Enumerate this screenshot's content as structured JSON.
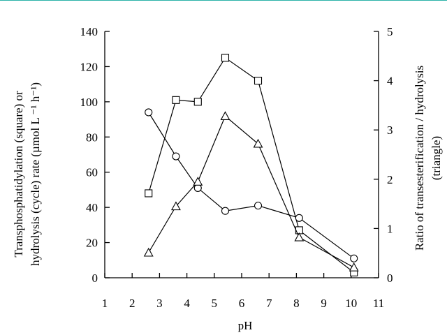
{
  "chart_data": {
    "type": "line",
    "xlabel": "pH",
    "ylabel_lines": [
      "Transphosphatidylation (square) or",
      "hydrolysis (cycle) rate (µmol L ⁻¹ h⁻¹)"
    ],
    "y2label_lines": [
      "Ratio of transesterification / hydrolysis",
      "(triangle)"
    ],
    "xlim": [
      1,
      11
    ],
    "ylim": [
      0,
      140
    ],
    "y2lim": [
      0,
      5
    ],
    "x_ticks": [
      1,
      2,
      3,
      4,
      5,
      6,
      7,
      8,
      9,
      10,
      11
    ],
    "y_ticks": [
      0,
      20,
      40,
      60,
      80,
      100,
      120,
      140
    ],
    "y2_ticks": [
      0,
      1,
      2,
      3,
      4,
      5
    ],
    "grid": false,
    "series": [
      {
        "marker": "square",
        "axis": "left",
        "x": [
          2.6,
          3.6,
          4.4,
          5.4,
          6.6,
          8.1,
          10.1
        ],
        "y": [
          48,
          101,
          100,
          125,
          112,
          27,
          3
        ]
      },
      {
        "marker": "circle",
        "axis": "left",
        "x": [
          2.6,
          3.6,
          4.4,
          5.4,
          6.6,
          8.1,
          10.1
        ],
        "y": [
          94,
          69,
          51,
          38,
          41,
          34,
          11
        ]
      },
      {
        "marker": "triangle",
        "axis": "right",
        "x": [
          2.6,
          3.6,
          4.4,
          5.4,
          6.6,
          8.1,
          10.1
        ],
        "y": [
          0.51,
          1.45,
          1.95,
          3.28,
          2.72,
          0.82,
          0.21
        ]
      }
    ]
  }
}
